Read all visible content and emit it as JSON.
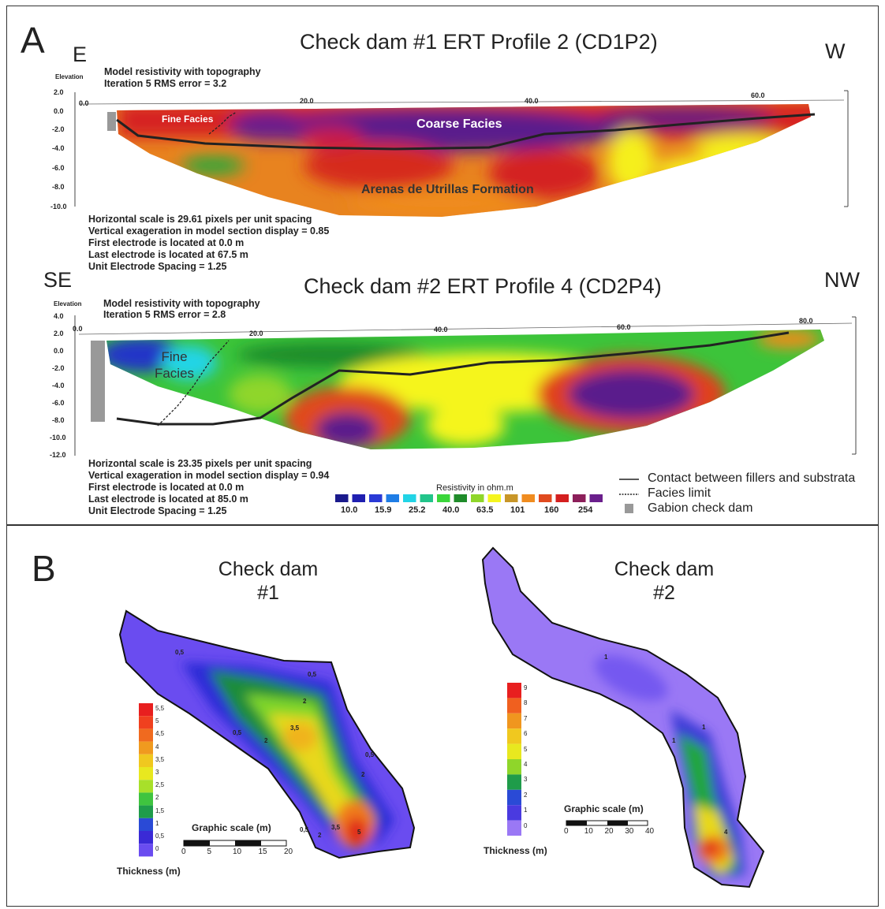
{
  "panel_a": {
    "letter": "A",
    "profile1": {
      "title": "Check dam #1 ERT Profile 2 (CD1P2)",
      "dir_left": "E",
      "dir_right": "W",
      "elev_label": "Elevation",
      "model_line1": "Model resistivity with topography",
      "model_line2": "Iteration 5 RMS error = 3.2",
      "x_ticks": [
        "0.0",
        "20.0",
        "40.0",
        "60.0"
      ],
      "y_ticks": [
        "2.0",
        "0.0",
        "-2.0",
        "-4.0",
        "-6.0",
        "-8.0",
        "-10.0"
      ],
      "fine_label": "Fine Facies",
      "coarse_label": "Coarse Facies",
      "formation_label": "Arenas de Utrillas Formation",
      "info": [
        "Horizontal scale is 29.61 pixels per unit spacing",
        "Vertical exageration in model section display = 0.85",
        "First electrode is located at 0.0 m",
        "Last electrode is located at 67.5 m",
        "Unit Electrode Spacing = 1.25"
      ]
    },
    "profile2": {
      "title": "Check dam #2 ERT Profile 4 (CD2P4)",
      "dir_left": "SE",
      "dir_right": "NW",
      "elev_label": "Elevation",
      "model_line1": "Model resistivity with topography",
      "model_line2": "Iteration 5 RMS error = 2.8",
      "x_ticks": [
        "0.0",
        "20.0",
        "40.0",
        "60.0",
        "80.0"
      ],
      "y_ticks": [
        "4.0",
        "2.0",
        "0.0",
        "-2.0",
        "-4.0",
        "-6.0",
        "-8.0",
        "-10.0",
        "-12.0"
      ],
      "fine_label_line1": "Fine",
      "fine_label_line2": "Facies",
      "info": [
        "Horizontal scale is 23.35 pixels per unit spacing",
        "Vertical exageration in model section display = 0.94",
        "First electrode is located at 0.0 m",
        "Last electrode is located at 85.0 m",
        "Unit Electrode Spacing = 1.25"
      ]
    },
    "resistivity_scale": {
      "title": "Resistivity in ohm.m",
      "labels": [
        "10.0",
        "15.9",
        "25.2",
        "40.0",
        "63.5",
        "101",
        "160",
        "254"
      ],
      "colors": [
        "#1a1a8c",
        "#1f1fb0",
        "#2a3ad6",
        "#1f7de6",
        "#22d4e6",
        "#22c48a",
        "#3bd63b",
        "#1f8c2a",
        "#8fd62a",
        "#f5f51f",
        "#c89628",
        "#f08c1f",
        "#e04a1f",
        "#d41f1f",
        "#8c1f5a",
        "#6a1f8c"
      ]
    },
    "legend": {
      "contact": "Contact between fillers and substrata",
      "facies": "Facies limit",
      "gabion": "Gabion check dam"
    }
  },
  "panel_b": {
    "letter": "B",
    "dam1": {
      "title_line1": "Check dam",
      "title_line2": "#1",
      "scale_labels": [
        "5,5",
        "5",
        "4,5",
        "4",
        "3,5",
        "3",
        "2,5",
        "2",
        "1,5",
        "1",
        "0,5",
        "0"
      ],
      "thickness_label": "Thickness (m)",
      "graphic_scale_title": "Graphic scale (m)",
      "graphic_scale_ticks": [
        "0",
        "5",
        "10",
        "15",
        "20"
      ],
      "contour_labels": [
        "0,5",
        "0,5",
        "2",
        "2",
        "3,5",
        "0,5",
        "2",
        "0,5",
        "2",
        "3,5",
        "5",
        "0,5"
      ]
    },
    "dam2": {
      "title_line1": "Check dam",
      "title_line2": "#2",
      "scale_labels": [
        "9",
        "8",
        "7",
        "6",
        "5",
        "4",
        "3",
        "2",
        "1",
        "0"
      ],
      "thickness_label": "Thickness (m)",
      "graphic_scale_title": "Graphic scale (m)",
      "graphic_scale_ticks": [
        "0",
        "10",
        "20",
        "30",
        "40"
      ],
      "contour_labels": [
        "1",
        "1",
        "1",
        "4"
      ]
    }
  }
}
